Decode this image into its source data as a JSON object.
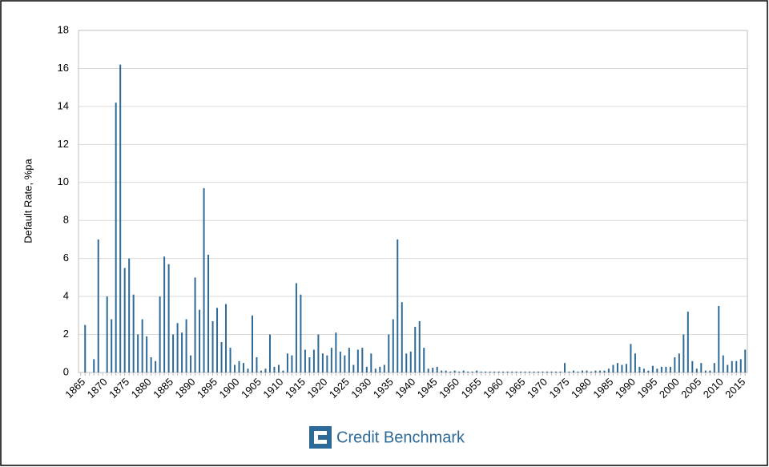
{
  "chart_data": {
    "type": "bar",
    "y_label": "Default Rate, %pa",
    "source": "Credit Benchmark",
    "color": "#2e6a97",
    "grid": true,
    "ylim": [
      0,
      18
    ],
    "yticks": [
      0,
      2,
      4,
      6,
      8,
      10,
      12,
      14,
      16,
      18
    ],
    "categories": [
      "1865",
      null,
      null,
      null,
      null,
      "1870",
      null,
      null,
      null,
      null,
      "1875",
      null,
      null,
      null,
      null,
      "1880",
      null,
      null,
      null,
      null,
      "1885",
      null,
      null,
      null,
      null,
      "1890",
      null,
      null,
      null,
      null,
      "1895",
      null,
      null,
      null,
      null,
      "1900",
      null,
      null,
      null,
      null,
      "1905",
      null,
      null,
      null,
      null,
      "1910",
      null,
      null,
      null,
      null,
      "1915",
      null,
      null,
      null,
      null,
      "1920",
      null,
      null,
      null,
      null,
      "1925",
      null,
      null,
      null,
      null,
      "1930",
      null,
      null,
      null,
      null,
      "1935",
      null,
      null,
      null,
      null,
      "1940",
      null,
      null,
      null,
      null,
      "1945",
      null,
      null,
      null,
      null,
      "1950",
      null,
      null,
      null,
      null,
      "1955",
      null,
      null,
      null,
      null,
      "1960",
      null,
      null,
      null,
      null,
      "1965",
      null,
      null,
      null,
      null,
      "1970",
      null,
      null,
      null,
      null,
      "1975",
      null,
      null,
      null,
      null,
      "1980",
      null,
      null,
      null,
      null,
      "1985",
      null,
      null,
      null,
      null,
      "1990",
      null,
      null,
      null,
      null,
      "1995",
      null,
      null,
      null,
      null,
      "2000",
      null,
      null,
      null,
      null,
      "2005",
      null,
      null,
      null,
      null,
      "2010",
      null,
      null,
      null,
      null,
      "2015",
      null
    ],
    "values": [
      0,
      2.5,
      0,
      0.7,
      7.0,
      0,
      4.0,
      2.8,
      14.2,
      16.2,
      5.5,
      6.0,
      4.1,
      2.0,
      2.8,
      1.9,
      0.8,
      0.6,
      4.0,
      6.1,
      5.7,
      2.0,
      2.6,
      2.1,
      2.8,
      0.9,
      5.0,
      3.3,
      9.7,
      6.2,
      2.7,
      3.4,
      1.6,
      3.6,
      1.3,
      0.4,
      0.6,
      0.5,
      0.2,
      3.0,
      0.8,
      0.1,
      0.2,
      2.0,
      0.3,
      0.4,
      0.1,
      1.0,
      0.9,
      4.7,
      4.1,
      1.2,
      0.8,
      1.2,
      2.0,
      1.0,
      0.9,
      1.3,
      2.1,
      1.1,
      0.9,
      1.3,
      0.4,
      1.2,
      1.3,
      0.3,
      1.0,
      0.2,
      0.3,
      0.4,
      2.0,
      2.8,
      7.0,
      3.7,
      1.0,
      1.1,
      2.4,
      2.7,
      1.3,
      0.2,
      0.25,
      0.3,
      0.1,
      0.1,
      0.05,
      0.1,
      0.05,
      0.1,
      0.05,
      0.05,
      0.1,
      0.05,
      0.05,
      0.05,
      0.05,
      0.05,
      0.05,
      0.05,
      0.05,
      0.05,
      0.05,
      0.05,
      0.05,
      0.05,
      0.05,
      0.05,
      0.05,
      0.05,
      0.05,
      0.05,
      0.5,
      0.05,
      0.1,
      0.05,
      0.1,
      0.1,
      0.05,
      0.1,
      0.1,
      0.1,
      0.2,
      0.4,
      0.5,
      0.4,
      0.45,
      1.5,
      1.0,
      0.3,
      0.2,
      0.1,
      0.35,
      0.2,
      0.3,
      0.3,
      0.3,
      0.8,
      1.0,
      2.0,
      3.2,
      0.6,
      0.2,
      0.5,
      0.1,
      0.1,
      0.5,
      3.5,
      0.9,
      0.4,
      0.6,
      0.6,
      0.7,
      1.2
    ]
  }
}
